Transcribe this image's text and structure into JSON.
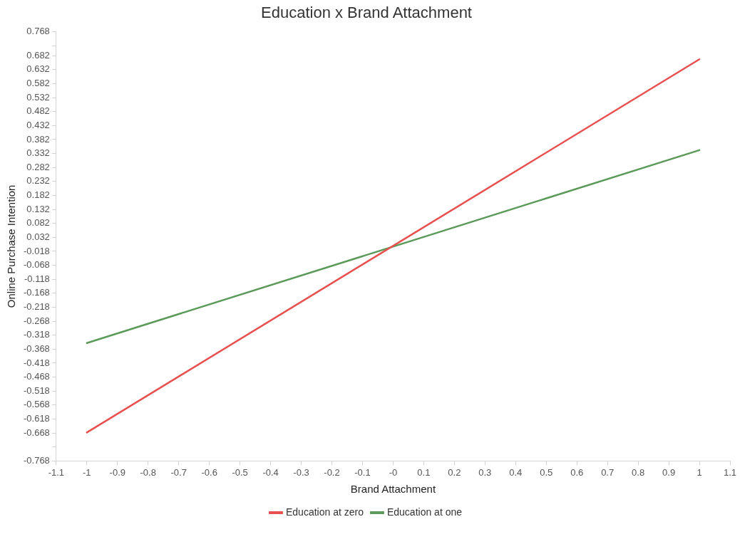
{
  "chart_data": {
    "type": "line",
    "title": "Education x Brand Attachment",
    "xlabel": "Brand Attachment",
    "ylabel": "Online Purchase Intention",
    "x": [
      -1,
      1
    ],
    "series": [
      {
        "name": "Education at zero",
        "color": "#e8504f",
        "values": [
          -0.666,
          0.669
        ]
      },
      {
        "name": "Education at one",
        "color": "#5b9a59",
        "values": [
          -0.346,
          0.344
        ]
      }
    ],
    "xlim": [
      -1.1,
      1.1
    ],
    "xticks": [
      -1.1,
      -1,
      -0.9,
      -0.8,
      -0.7,
      -0.6,
      -0.5,
      -0.4,
      -0.3,
      -0.2,
      -0.1,
      {
        "value": 0,
        "label": "-0"
      },
      0.1,
      0.2,
      0.3,
      0.4,
      0.5,
      0.6,
      0.7,
      0.8,
      0.9,
      1,
      1.1
    ],
    "ylim": [
      -0.768,
      0.768
    ],
    "yticks": [
      -0.768,
      {
        "value": -0.718,
        "label": null
      },
      -0.668,
      -0.618,
      -0.568,
      -0.518,
      -0.468,
      -0.418,
      -0.368,
      -0.318,
      -0.268,
      -0.218,
      -0.168,
      -0.118,
      -0.068,
      -0.018,
      0.032,
      0.082,
      0.132,
      0.182,
      0.232,
      0.282,
      0.332,
      0.382,
      0.432,
      0.482,
      0.532,
      0.582,
      0.632,
      0.682,
      {
        "value": 0.718,
        "label": null
      },
      0.768
    ],
    "grid": false,
    "legend": "bottom",
    "marker": "none",
    "line_style": "solid"
  }
}
